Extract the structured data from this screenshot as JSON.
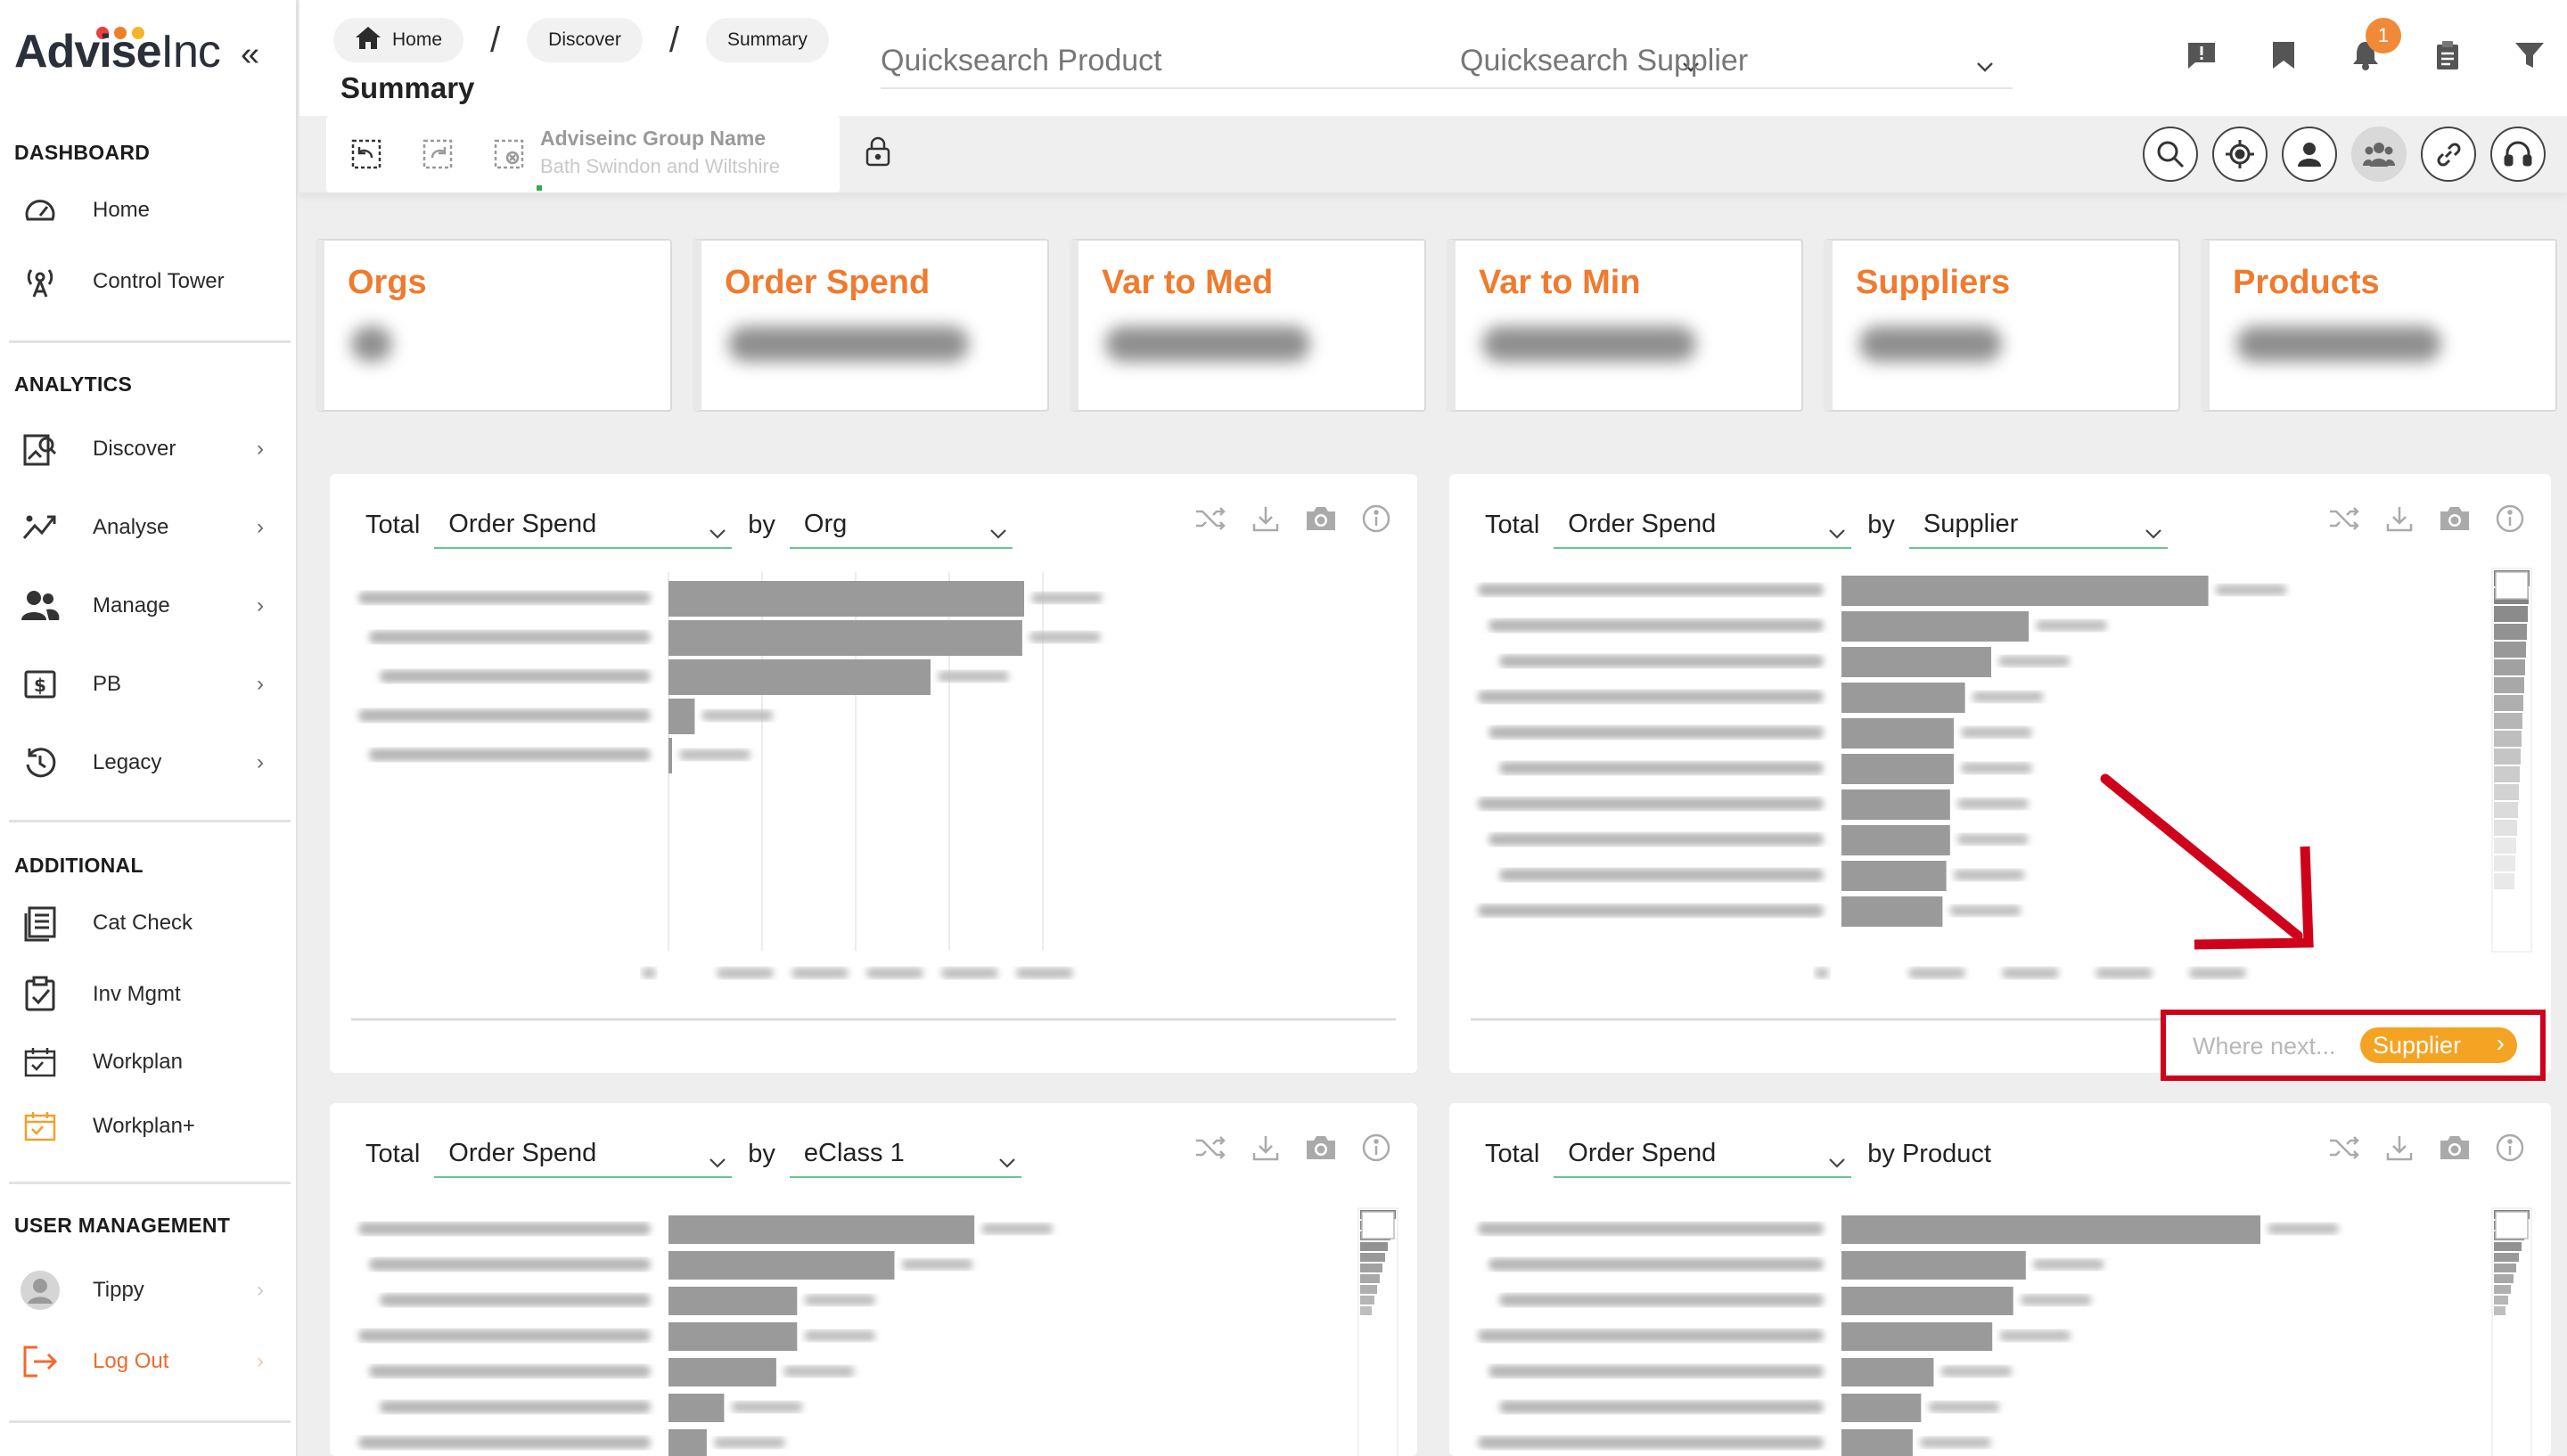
{
  "brand": {
    "name_main": "Advise",
    "name_suffix": "Inc",
    "dot_colors": [
      "#e8403b",
      "#f07f2a",
      "#f5b428"
    ]
  },
  "sidebar": {
    "sections": [
      {
        "label": "DASHBOARD"
      },
      {
        "label": "ANALYTICS"
      },
      {
        "label": "ADDITIONAL"
      },
      {
        "label": "USER MANAGEMENT"
      }
    ],
    "items": [
      {
        "label": "Home",
        "icon": "gauge-icon"
      },
      {
        "label": "Control Tower",
        "icon": "broadcast-tower-icon"
      },
      {
        "label": "Discover",
        "icon": "discover-icon",
        "chevron": "›"
      },
      {
        "label": "Analyse",
        "icon": "trend-icon",
        "chevron": "›"
      },
      {
        "label": "Manage",
        "icon": "users-icon",
        "chevron": "›"
      },
      {
        "label": "PB",
        "icon": "dollar-icon",
        "chevron": "›"
      },
      {
        "label": "Legacy",
        "icon": "history-icon",
        "chevron": "›"
      },
      {
        "label": "Cat Check",
        "icon": "list-icon"
      },
      {
        "label": "Inv Mgmt",
        "icon": "clipboard-check-icon"
      },
      {
        "label": "Workplan",
        "icon": "calendar-icon"
      },
      {
        "label": "Workplan+",
        "icon": "calendar-plus-icon"
      },
      {
        "label": "Tippy",
        "icon": "avatar-icon",
        "chevron": "›"
      },
      {
        "label": "Log Out",
        "icon": "logout-icon",
        "chevron": "›"
      }
    ]
  },
  "header": {
    "breadcrumbs": [
      "Home",
      "Discover",
      "Summary"
    ],
    "breadcrumb_separator": "/",
    "page_title": "Summary",
    "quicksearch_product": "Quicksearch Product",
    "quicksearch_supplier": "Quicksearch Supplier",
    "notification_count": "1",
    "group_label": "Adviseinc Group Name",
    "group_value": "Bath Swindon and Wiltshire"
  },
  "kpis": [
    {
      "title": "Orgs"
    },
    {
      "title": "Order Spend"
    },
    {
      "title": "Var to Med"
    },
    {
      "title": "Var to Min"
    },
    {
      "title": "Suppliers"
    },
    {
      "title": "Products"
    }
  ],
  "panels": [
    {
      "total": "Total",
      "measure": "Order Spend",
      "by": "by",
      "dimension": "Org"
    },
    {
      "total": "Total",
      "measure": "Order Spend",
      "by": "by",
      "dimension": "Supplier"
    },
    {
      "total": "Total",
      "measure": "Order Spend",
      "by": "by",
      "dimension": "eClass 1"
    },
    {
      "total": "Total",
      "measure": "Order Spend",
      "by": "by Product",
      "dimension": ""
    }
  ],
  "where_next": {
    "prompt": "Where next...",
    "button": "Supplier",
    "chevron": "›"
  },
  "colors": {
    "accent_orange": "#ef7b2f",
    "annotation_red": "#d0021b",
    "bar_gray": "#9a9a9a",
    "select_underline": "#68c690"
  },
  "chart_data": [
    {
      "type": "bar",
      "orientation": "horizontal",
      "title": "",
      "values": [
        0.95,
        0.945,
        0.7,
        0.07,
        0.006
      ]
    },
    {
      "type": "bar",
      "orientation": "horizontal",
      "title": "",
      "values": [
        0.98,
        0.5,
        0.4,
        0.33,
        0.3,
        0.3,
        0.29,
        0.29,
        0.28,
        0.27
      ]
    },
    {
      "type": "bar",
      "orientation": "horizontal",
      "title": "",
      "values": [
        0.88,
        0.65,
        0.37,
        0.37,
        0.31,
        0.16,
        0.11
      ]
    },
    {
      "type": "bar",
      "orientation": "horizontal",
      "title": "",
      "values": [
        1.0,
        0.44,
        0.41,
        0.36,
        0.22,
        0.19,
        0.17
      ]
    }
  ]
}
